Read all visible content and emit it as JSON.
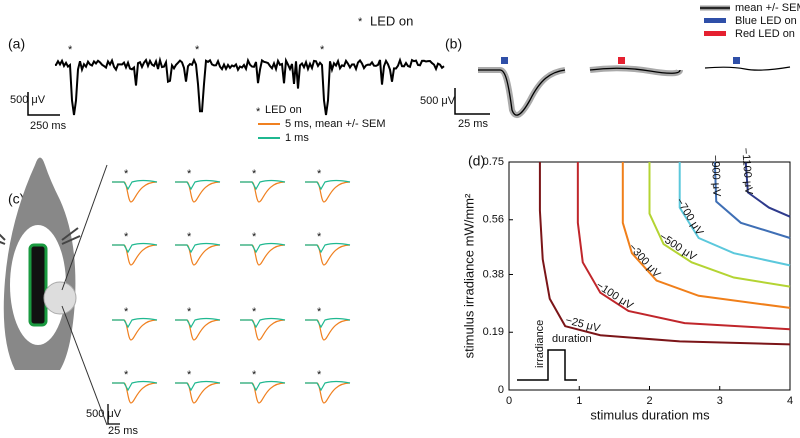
{
  "panel_a": {
    "label": "(a)",
    "legend": "LED on",
    "scale_y": "500 μV",
    "scale_x": "250 ms"
  },
  "panel_b": {
    "label": "(b)",
    "legend": [
      "mean +/- SEM",
      "Blue LED on",
      "Red LED on"
    ],
    "scale_y": "500 μV",
    "scale_x": "25 ms"
  },
  "panel_c": {
    "label": "(c)",
    "legend": [
      "LED on",
      "5 ms, mean +/- SEM",
      "1 ms"
    ],
    "scale_y": "500 μV",
    "scale_x": "25 ms"
  },
  "chart_data": {
    "type": "line",
    "label": "(d)",
    "xlabel": "stimulus duration ms",
    "ylabel": "stimulus irradiance  mW/mm²",
    "xlim": [
      0,
      4
    ],
    "xticks": [
      0,
      1,
      2,
      3,
      4
    ],
    "ylim": [
      0,
      0.75
    ],
    "yticks": [
      0,
      0.19,
      0.38,
      0.56,
      0.75
    ],
    "annotations": [
      "irradiance",
      "duration"
    ],
    "series": [
      {
        "name": "−25 μV",
        "color": "#7b1518",
        "x": [
          0.44,
          0.44,
          0.48,
          0.58,
          0.8,
          1.3,
          2.43,
          4
        ],
        "values": [
          0.75,
          0.59,
          0.43,
          0.3,
          0.21,
          0.18,
          0.16,
          0.15
        ]
      },
      {
        "name": "−100 μV",
        "color": "#c0262b",
        "x": [
          0.98,
          0.98,
          1.05,
          1.3,
          1.7,
          2.5,
          4
        ],
        "values": [
          0.75,
          0.55,
          0.42,
          0.32,
          0.26,
          0.22,
          0.2
        ]
      },
      {
        "name": "−300 μV",
        "color": "#f07f1a",
        "x": [
          1.62,
          1.62,
          1.75,
          2.1,
          2.7,
          4
        ],
        "values": [
          0.75,
          0.55,
          0.45,
          0.36,
          0.31,
          0.27
        ]
      },
      {
        "name": "−500 μV",
        "color": "#b4d433",
        "x": [
          2,
          2,
          2.2,
          2.6,
          3.2,
          4
        ],
        "values": [
          0.75,
          0.58,
          0.48,
          0.42,
          0.37,
          0.34
        ]
      },
      {
        "name": "−700 μV",
        "color": "#5bc8dc",
        "x": [
          2.43,
          2.43,
          2.7,
          3.2,
          4
        ],
        "values": [
          0.75,
          0.6,
          0.5,
          0.45,
          0.41
        ]
      },
      {
        "name": "−900 μV",
        "color": "#3f6fb5",
        "x": [
          2.93,
          2.95,
          3.3,
          4
        ],
        "values": [
          0.75,
          0.62,
          0.55,
          0.5
        ]
      },
      {
        "name": "−1100 μV",
        "color": "#2e3a8c",
        "x": [
          3.37,
          3.4,
          3.7,
          4
        ],
        "values": [
          0.75,
          0.65,
          0.6,
          0.57
        ]
      }
    ]
  }
}
